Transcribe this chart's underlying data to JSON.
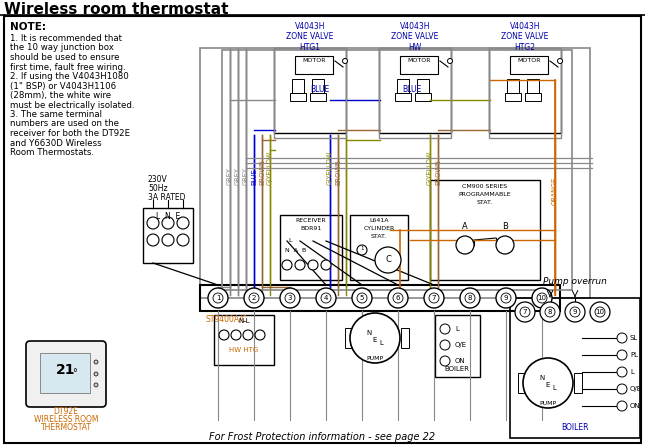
{
  "title": "Wireless room thermostat",
  "bg": "#ffffff",
  "text_blue": "#0000aa",
  "text_black": "#000000",
  "text_orange": "#cc6600",
  "wire_grey": "#888888",
  "wire_blue": "#0000cc",
  "wire_brown": "#996633",
  "wire_gyellow": "#888800",
  "wire_orange": "#cc6600",
  "wire_black": "#000000",
  "note_lines": [
    "1. It is recommended that",
    "the 10 way junction box",
    "should be used to ensure",
    "first time, fault free wiring.",
    "2. If using the V4043H1080",
    "(1\" BSP) or V4043H1106",
    "(28mm), the white wire",
    "must be electrically isolated.",
    "3. The same terminal",
    "numbers are used on the",
    "receiver for both the DT92E",
    "and Y6630D Wireless",
    "Room Thermostats."
  ],
  "frost_text": "For Frost Protection information - see page 22",
  "dt92e_lines": [
    "DT92E",
    "WIRELESS ROOM",
    "THERMOSTAT"
  ]
}
